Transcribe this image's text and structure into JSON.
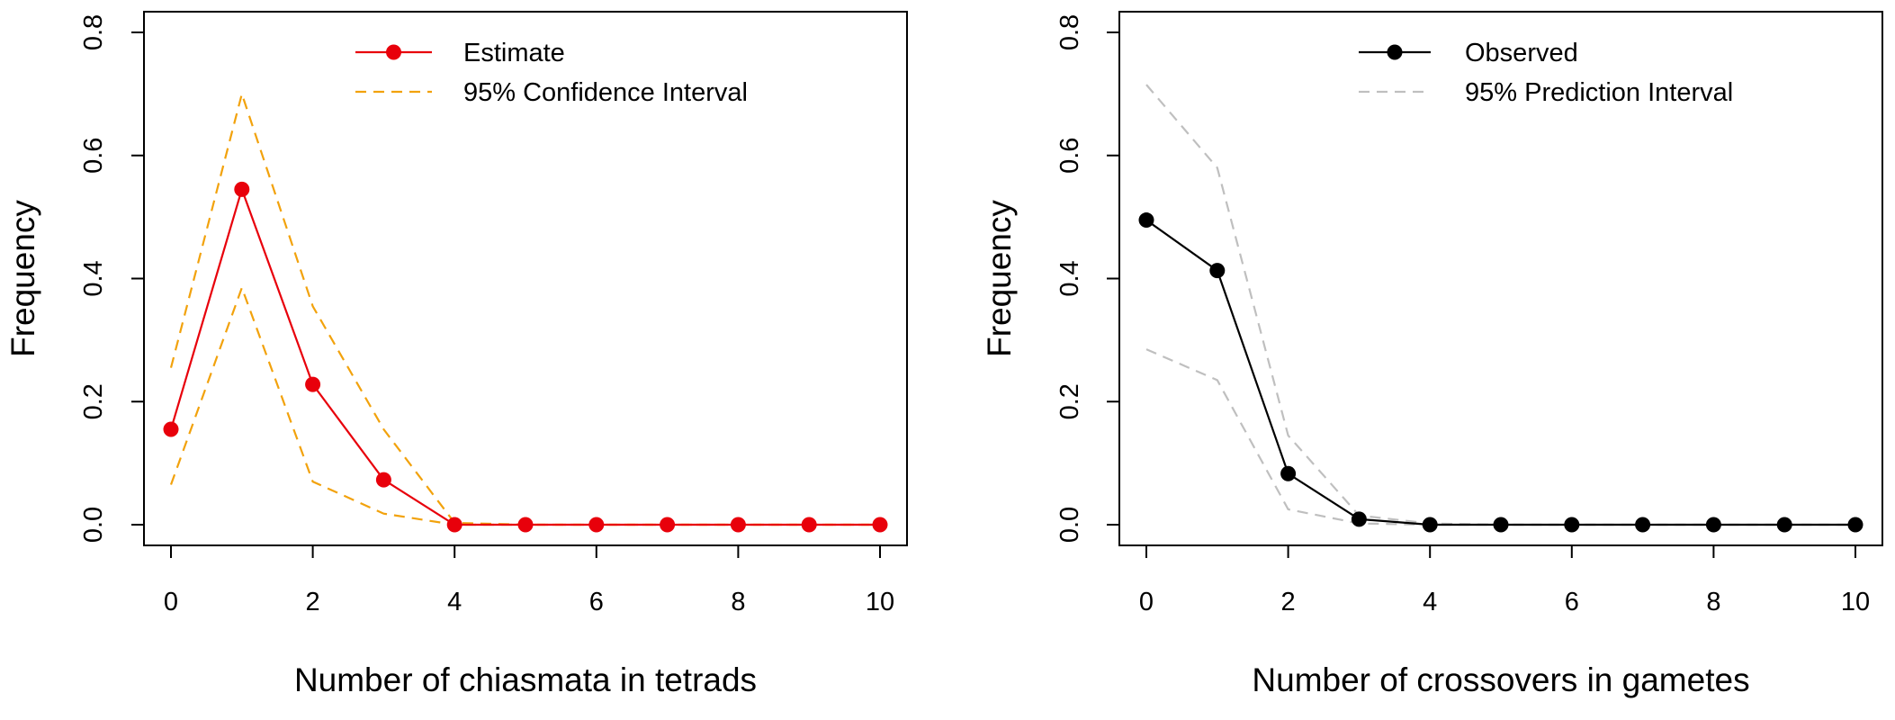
{
  "chart_data": [
    {
      "type": "line",
      "title": "",
      "xlabel": "Number of chiasmata in tetrads",
      "ylabel": "Frequency",
      "xlim": [
        0,
        10
      ],
      "ylim": [
        0,
        0.8
      ],
      "x_ticks": [
        "0",
        "2",
        "4",
        "6",
        "8",
        "10"
      ],
      "y_ticks": [
        "0.0",
        "0.2",
        "0.4",
        "0.6",
        "0.8"
      ],
      "legend_position": "top-center",
      "x": [
        0,
        1,
        2,
        3,
        4,
        5,
        6,
        7,
        8,
        9,
        10
      ],
      "series": [
        {
          "name": "Estimate",
          "role": "main",
          "color": "#e8000b",
          "style": "solid",
          "markers": true,
          "values": [
            0.155,
            0.545,
            0.228,
            0.073,
            0.0,
            0.0,
            0.0,
            0.0,
            0.0,
            0.0,
            0.0
          ]
        },
        {
          "name": "95% Confidence Interval",
          "role": "upper",
          "color": "#f2a20c",
          "style": "dashed",
          "markers": false,
          "values": [
            0.255,
            0.7,
            0.355,
            0.155,
            0.003,
            0.0,
            0.0,
            0.0,
            0.0,
            0.0,
            0.0
          ]
        },
        {
          "name": "",
          "role": "lower",
          "color": "#f2a20c",
          "style": "dashed",
          "markers": false,
          "values": [
            0.065,
            0.385,
            0.07,
            0.018,
            0.0,
            0.0,
            0.0,
            0.0,
            0.0,
            0.0,
            0.0
          ]
        }
      ]
    },
    {
      "type": "line",
      "title": "",
      "xlabel": "Number of crossovers in gametes",
      "ylabel": "Frequency",
      "xlim": [
        0,
        10
      ],
      "ylim": [
        0,
        0.8
      ],
      "x_ticks": [
        "0",
        "2",
        "4",
        "6",
        "8",
        "10"
      ],
      "y_ticks": [
        "0.0",
        "0.2",
        "0.4",
        "0.6",
        "0.8"
      ],
      "legend_position": "top-center",
      "x": [
        0,
        1,
        2,
        3,
        4,
        5,
        6,
        7,
        8,
        9,
        10
      ],
      "series": [
        {
          "name": "Observed",
          "role": "main",
          "color": "#000000",
          "style": "solid",
          "markers": true,
          "values": [
            0.495,
            0.413,
            0.083,
            0.009,
            0.0,
            0.0,
            0.0,
            0.0,
            0.0,
            0.0,
            0.0
          ]
        },
        {
          "name": "95% Prediction Interval",
          "role": "upper",
          "color": "#bfbfbf",
          "style": "dashed",
          "markers": false,
          "values": [
            0.715,
            0.58,
            0.145,
            0.015,
            0.002,
            0.0,
            0.0,
            0.0,
            0.0,
            0.0,
            0.0
          ]
        },
        {
          "name": "",
          "role": "lower",
          "color": "#bfbfbf",
          "style": "dashed",
          "markers": false,
          "values": [
            0.285,
            0.235,
            0.025,
            0.002,
            0.0,
            0.0,
            0.0,
            0.0,
            0.0,
            0.0,
            0.0
          ]
        }
      ]
    }
  ]
}
